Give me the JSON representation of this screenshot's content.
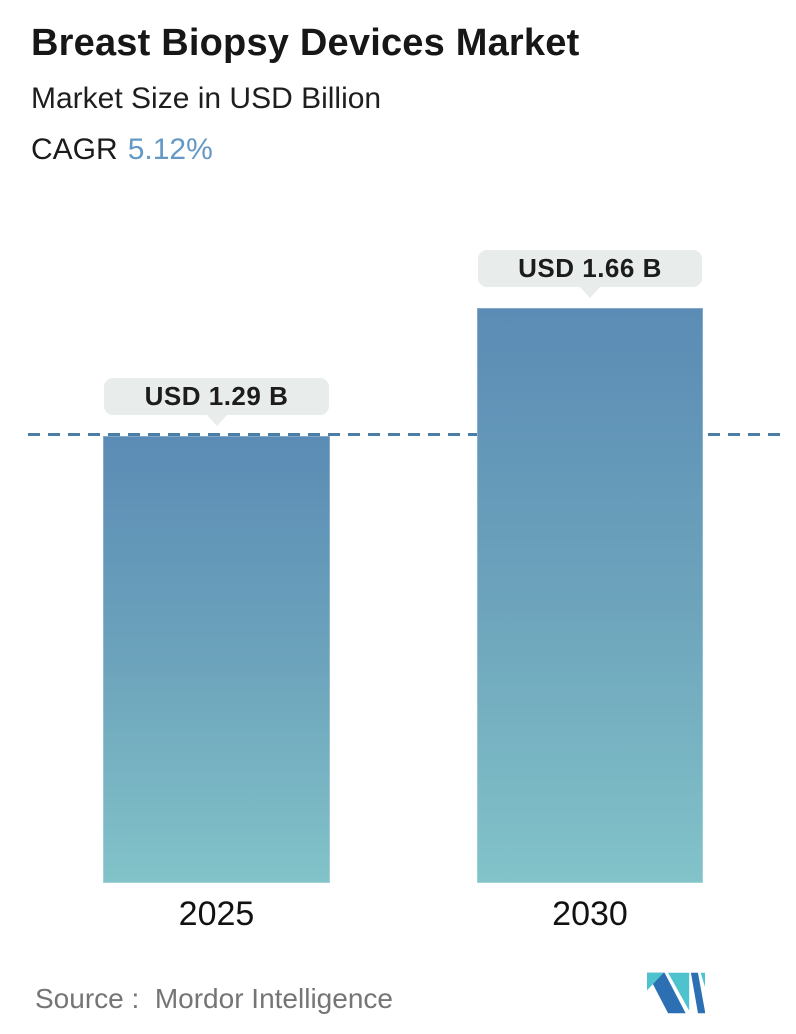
{
  "header": {
    "title": "Breast Biopsy Devices Market",
    "subtitle": "Market Size in USD Billion",
    "cagr_label": "CAGR",
    "cagr_value": "5.12%"
  },
  "chart_data": {
    "type": "bar",
    "title": "Breast Biopsy Devices Market",
    "subtitle": "Market Size in USD Billion",
    "unit": "USD Billion",
    "cagr_percent": 5.12,
    "categories": [
      "2025",
      "2030"
    ],
    "values": [
      1.29,
      1.66
    ],
    "value_labels": [
      "USD 1.29 B",
      "USD 1.66 B"
    ],
    "ylim": [
      0,
      1.8
    ],
    "grid": false,
    "legend": "none",
    "baseline": {
      "style": "dashed",
      "at_value": 1.29,
      "spans_full_width": true
    },
    "colors": {
      "bar_gradient_top": "#5b8cb5",
      "bar_gradient_bottom": "#82c3c9",
      "dashed_line": "#4b7ea6",
      "accent_text": "#6598c4",
      "callout_background": "#e8ecea",
      "text": "#171717",
      "source_text": "#757575",
      "logo_blue": "#2d6fb3",
      "logo_teal": "#4ec3ce"
    }
  },
  "footer": {
    "source_text": "Source :  Mordor Intelligence",
    "logo_name": "mordor-intelligence-logo"
  }
}
